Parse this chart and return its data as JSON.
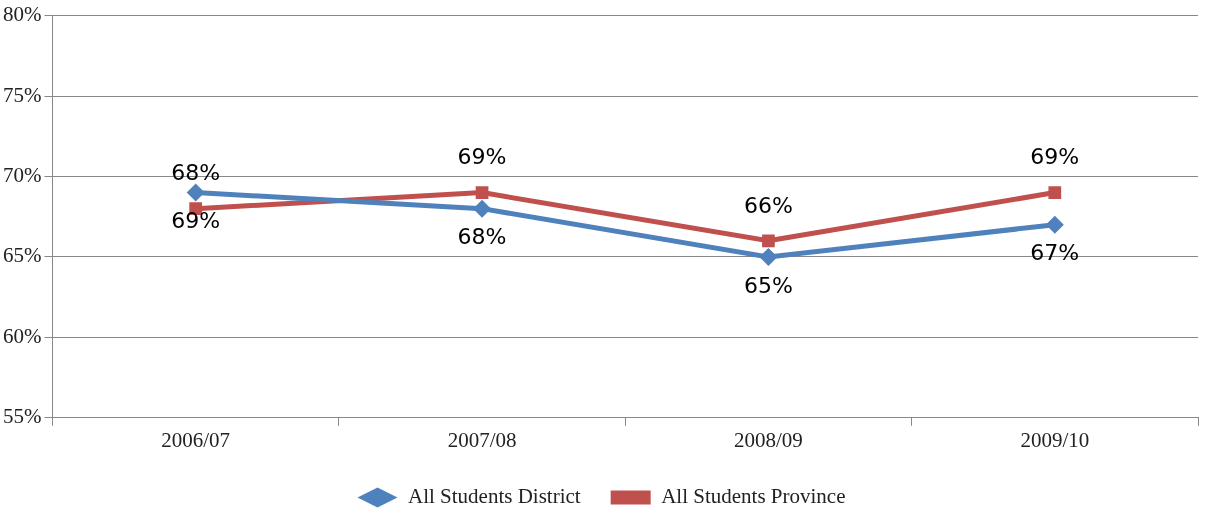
{
  "chart_data": {
    "type": "line",
    "categories": [
      "2006/07",
      "2007/08",
      "2008/09",
      "2009/10"
    ],
    "series": [
      {
        "name": "All Students District",
        "color": "#4f81bd",
        "marker": "diamond",
        "values": [
          69,
          68,
          65,
          67
        ],
        "value_labels": [
          "69%",
          "68%",
          "65%",
          "67%"
        ]
      },
      {
        "name": "All Students Province",
        "color": "#c0504d",
        "marker": "square",
        "values": [
          68,
          69,
          66,
          69
        ],
        "value_labels": [
          "68%",
          "69%",
          "66%",
          "69%"
        ]
      }
    ],
    "ylim": [
      55,
      80
    ],
    "yticks": [
      {
        "value": 55,
        "label": "55%"
      },
      {
        "value": 60,
        "label": "60%"
      },
      {
        "value": 65,
        "label": "65%"
      },
      {
        "value": 70,
        "label": "70%"
      },
      {
        "value": 75,
        "label": "75%"
      },
      {
        "value": 80,
        "label": "80%"
      }
    ],
    "grid": "y",
    "legend": "bottom",
    "line_style": "solid"
  }
}
